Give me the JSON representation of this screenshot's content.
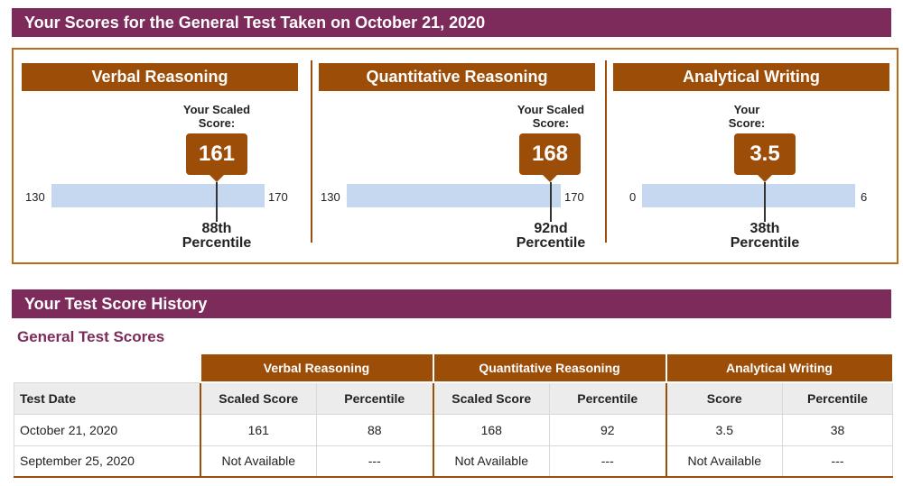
{
  "banner": {
    "title": "Your Scores for the General Test Taken on October 21, 2020"
  },
  "sections": [
    {
      "name": "Verbal Reasoning",
      "scaled_label": "Your Scaled Score:",
      "score": "161",
      "min": "130",
      "max": "170",
      "percentile_num": "88th",
      "percentile_word": "Percentile",
      "score_value": 161,
      "range_min": 130,
      "range_max": 170
    },
    {
      "name": "Quantitative Reasoning",
      "scaled_label": "Your Scaled Score:",
      "score": "168",
      "min": "130",
      "max": "170",
      "percentile_num": "92nd",
      "percentile_word": "Percentile",
      "score_value": 168,
      "range_min": 130,
      "range_max": 170
    },
    {
      "name": "Analytical Writing",
      "scaled_label": "Your Score:",
      "score": "3.5",
      "min": "0",
      "max": "6",
      "percentile_num": "38th",
      "percentile_word": "Percentile",
      "score_value": 3.5,
      "range_min": 0,
      "range_max": 6
    }
  ],
  "history": {
    "title": "Your Test Score History",
    "subtitle": "General Test Scores",
    "groups": [
      "Verbal Reasoning",
      "Quantitative Reasoning",
      "Analytical Writing"
    ],
    "columns": [
      "Test Date",
      "Scaled Score",
      "Percentile",
      "Scaled Score",
      "Percentile",
      "Score",
      "Percentile"
    ],
    "rows": [
      [
        "October 21, 2020",
        "161",
        "88",
        "168",
        "92",
        "3.5",
        "38"
      ],
      [
        "September 25, 2020",
        "Not Available",
        "---",
        "Not Available",
        "---",
        "Not Available",
        "---"
      ]
    ]
  },
  "colors": {
    "banner": "#7d2b5a",
    "accent": "#9c4d08",
    "range_bar": "#c6d8ef"
  }
}
